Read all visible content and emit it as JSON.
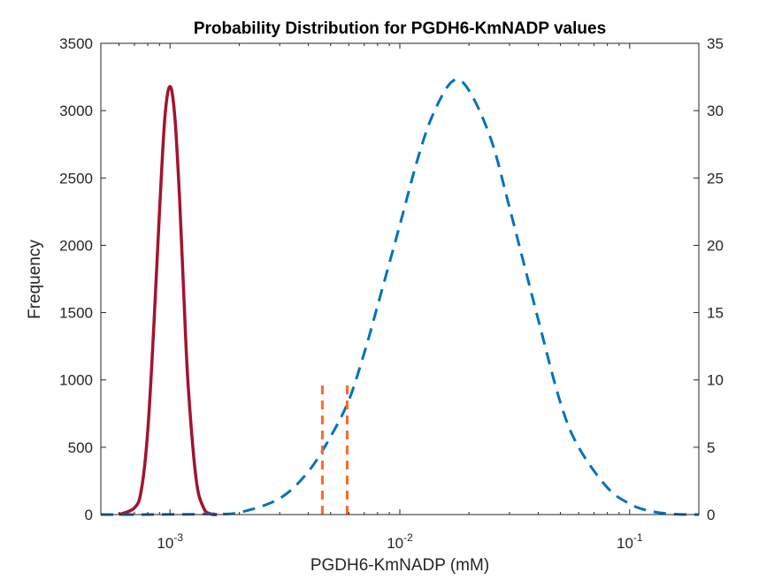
{
  "chart_data": {
    "type": "line",
    "title": "Probability Distribution for PGDH6-KmNADP values",
    "xlabel": "PGDH6-KmNADP (mM)",
    "ylabel": "Frequency",
    "xscale": "log",
    "xlim": [
      0.0005,
      0.2
    ],
    "ylim_left": [
      0,
      3500
    ],
    "ylim_right": [
      0,
      35
    ],
    "grid": false,
    "legend": "none",
    "x_ticks": [
      {
        "value": 0.001,
        "base": "10",
        "exp": "-3"
      },
      {
        "value": 0.01,
        "base": "10",
        "exp": "-2"
      },
      {
        "value": 0.1,
        "base": "10",
        "exp": "-1"
      }
    ],
    "y_left_ticks": [
      "0",
      "500",
      "1000",
      "1500",
      "2000",
      "2500",
      "3000",
      "3500"
    ],
    "y_right_ticks": [
      "0",
      "5",
      "10",
      "15",
      "20",
      "25",
      "30",
      "35"
    ],
    "series": [
      {
        "axis": "left",
        "style": "solid",
        "color": "#A2142F",
        "x": [
          0.0006,
          0.0007,
          0.00075,
          0.0008,
          0.00085,
          0.0009,
          0.00095,
          0.001,
          0.00105,
          0.0011,
          0.00115,
          0.0012,
          0.0013,
          0.0014,
          0.0015,
          0.0016
        ],
        "y": [
          0,
          50,
          180,
          620,
          1400,
          2250,
          2950,
          3180,
          2950,
          2350,
          1600,
          950,
          260,
          50,
          5,
          0
        ]
      },
      {
        "axis": "right",
        "style": "dashed",
        "color": "#0072BD",
        "x": [
          0.0005,
          0.001,
          0.0015,
          0.002,
          0.003,
          0.004,
          0.005,
          0.006,
          0.007,
          0.008,
          0.01,
          0.012,
          0.014,
          0.017,
          0.02,
          0.025,
          0.03,
          0.04,
          0.05,
          0.06,
          0.08,
          0.1,
          0.12,
          0.15,
          0.2
        ],
        "y": [
          0,
          0.01,
          0.05,
          0.15,
          1.2,
          3.2,
          5.8,
          8.5,
          12.0,
          15.5,
          21.5,
          26.5,
          29.8,
          32.2,
          31.5,
          27.8,
          22.8,
          14.5,
          8.3,
          5.0,
          2.0,
          0.8,
          0.3,
          0.05,
          0
        ]
      },
      {
        "axis": "left",
        "style": "dashed",
        "color": "#FF6929",
        "x": [
          0.0046,
          0.0046
        ],
        "y": [
          0,
          1000
        ]
      },
      {
        "axis": "left",
        "style": "dashed",
        "color": "#FF6929",
        "x": [
          0.0059,
          0.0059
        ],
        "y": [
          0,
          1000
        ]
      }
    ]
  }
}
